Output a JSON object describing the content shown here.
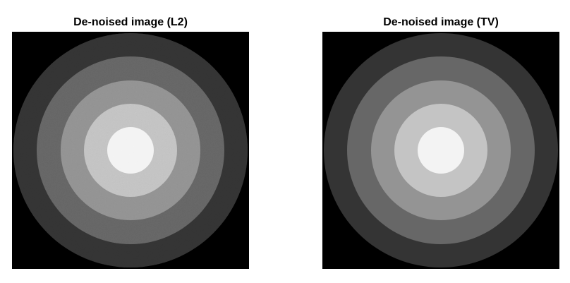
{
  "panels": [
    {
      "title": "De-noised image (L2)",
      "method": "L2",
      "noise_texture": "visible-grain"
    },
    {
      "title": "De-noised image (TV)",
      "method": "TV",
      "noise_texture": "smooth-flat-regions"
    }
  ],
  "image": {
    "background_color": "#000000",
    "ring_colors_outer_to_inner": [
      "#343434",
      "#676767",
      "#949494",
      "#c4c4c4",
      "#f3f3f3"
    ],
    "rings_count": 5
  }
}
